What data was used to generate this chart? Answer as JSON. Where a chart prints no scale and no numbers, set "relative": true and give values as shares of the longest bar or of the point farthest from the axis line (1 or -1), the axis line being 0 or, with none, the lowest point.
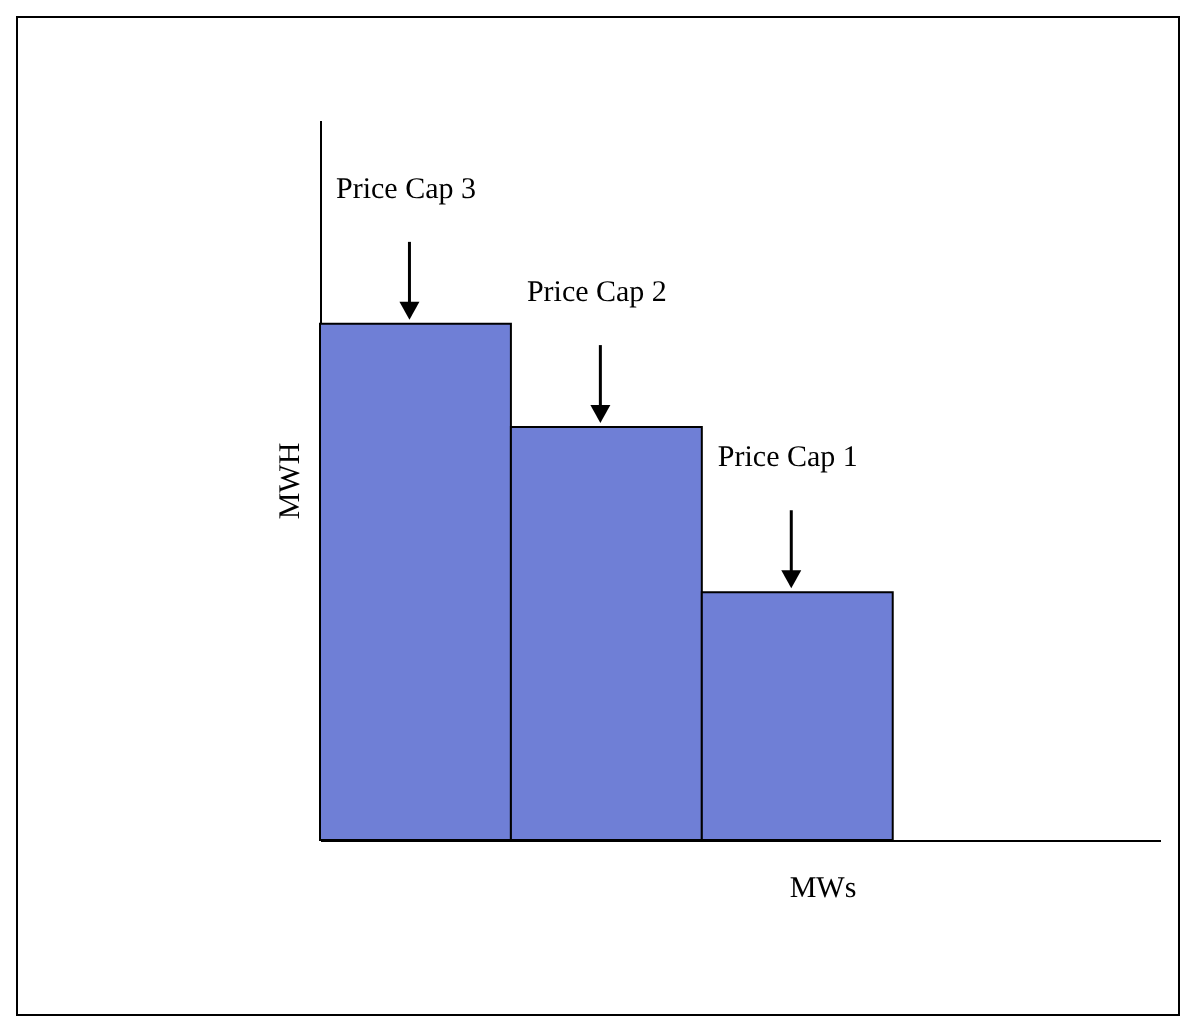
{
  "chart_data": {
    "type": "bar",
    "relative": true,
    "xlabel": "MWs",
    "ylabel": "MWH",
    "categories": [
      null,
      null,
      null
    ],
    "values": [
      1,
      0.8,
      0.48
    ],
    "color": "#6f7fd6",
    "annotations": [
      "Price Cap 3",
      "Price Cap 2",
      "Price Cap 1"
    ]
  }
}
